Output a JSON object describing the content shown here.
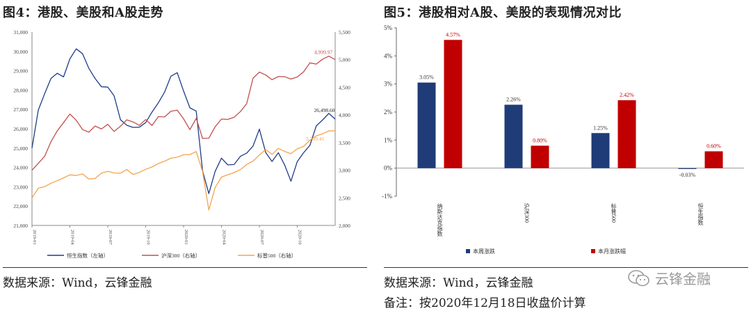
{
  "left": {
    "title": "图4：港股、美股和A股走势",
    "source": "数据来源：Wind，云锋金融",
    "chart_data": {
      "type": "line",
      "title": "港股、美股和A股走势",
      "x_ticks": [
        "2019-01",
        "2019-04",
        "2019-07",
        "2019-10",
        "2020-01",
        "2020-04",
        "2020-07",
        "2020-10"
      ],
      "x_range": [
        0,
        24
      ],
      "y_left": {
        "range": [
          21000,
          31000
        ],
        "ticks": [
          "21,000",
          "22,000",
          "23,000",
          "24,000",
          "25,000",
          "26,000",
          "27,000",
          "28,000",
          "29,000",
          "30,000",
          "31,000"
        ]
      },
      "y_right": {
        "range": [
          2000,
          5500
        ],
        "ticks": [
          "2,000",
          "2,500",
          "3,000",
          "3,500",
          "4,000",
          "4,500",
          "5,000",
          "5,500"
        ]
      },
      "series": [
        {
          "name": "恒生指数（左轴）",
          "axis": "left",
          "color": "#1f3c88",
          "t": [
            0,
            0.5,
            1,
            1.5,
            2,
            2.5,
            3,
            3.5,
            4,
            4.5,
            5,
            5.5,
            6,
            6.5,
            7,
            7.5,
            8,
            8.5,
            9,
            9.5,
            10,
            10.5,
            11,
            11.5,
            12,
            12.5,
            13,
            13.5,
            14,
            14.5,
            15,
            15.5,
            16,
            16.5,
            17,
            17.5,
            18,
            18.5,
            19,
            19.5,
            20,
            20.5,
            21,
            21.5,
            22,
            22.5,
            23,
            23.5,
            24
          ],
          "v": [
            25000,
            26800,
            27800,
            28500,
            28800,
            28600,
            29500,
            30100,
            30000,
            29200,
            28600,
            28200,
            28300,
            27700,
            26500,
            26100,
            25900,
            26000,
            26200,
            26800,
            27200,
            27800,
            28600,
            29000,
            28100,
            27200,
            27000,
            24000,
            22800,
            23900,
            24300,
            24000,
            24100,
            24500,
            24700,
            25000,
            25800,
            24600,
            24400,
            24800,
            24200,
            23300,
            24400,
            24900,
            25200,
            26000,
            26400,
            26700,
            26500
          ]
        },
        {
          "name": "沪深300（右轴）",
          "axis": "right",
          "color": "#c0504d",
          "t": [
            0,
            0.5,
            1,
            1.5,
            2,
            2.5,
            3,
            3.5,
            4,
            4.5,
            5,
            5.5,
            6,
            6.5,
            7,
            7.5,
            8,
            8.5,
            9,
            9.5,
            10,
            10.5,
            11,
            11.5,
            12,
            12.5,
            13,
            13.5,
            14,
            14.5,
            15,
            15.5,
            16,
            16.5,
            17,
            17.5,
            18,
            18.5,
            19,
            19.5,
            20,
            20.5,
            21,
            21.5,
            22,
            22.5,
            23,
            23.5,
            24
          ],
          "v": [
            3000,
            3100,
            3250,
            3500,
            3700,
            3850,
            4000,
            3900,
            3750,
            3700,
            3800,
            3750,
            3850,
            3700,
            3800,
            3900,
            3850,
            3800,
            3900,
            3800,
            3950,
            3950,
            4050,
            4100,
            3950,
            3750,
            3950,
            3600,
            3600,
            3800,
            3900,
            3900,
            3950,
            4050,
            4200,
            4650,
            4750,
            4700,
            4650,
            4700,
            4700,
            4650,
            4700,
            4800,
            4950,
            4900,
            5000,
            5050,
            4999.97
          ]
        },
        {
          "name": "标普500（右轴）",
          "axis": "right",
          "color": "#f5a34b",
          "t": [
            0,
            0.5,
            1,
            1.5,
            2,
            2.5,
            3,
            3.5,
            4,
            4.5,
            5,
            5.5,
            6,
            6.5,
            7,
            7.5,
            8,
            8.5,
            9,
            9.5,
            10,
            10.5,
            11,
            11.5,
            12,
            12.5,
            13,
            13.5,
            14,
            14.5,
            15,
            15.5,
            16,
            16.5,
            17,
            17.5,
            18,
            18.5,
            19,
            19.5,
            20,
            20.5,
            21,
            21.5,
            22,
            22.5,
            23,
            23.5,
            24
          ],
          "v": [
            2500,
            2650,
            2700,
            2750,
            2800,
            2850,
            2900,
            2900,
            2950,
            2850,
            2850,
            2950,
            3000,
            2950,
            2950,
            3000,
            2900,
            2950,
            3000,
            3050,
            3100,
            3150,
            3200,
            3250,
            3300,
            3300,
            3350,
            3000,
            2300,
            2700,
            2850,
            2900,
            2950,
            3000,
            3100,
            3150,
            3250,
            3350,
            3300,
            3400,
            3350,
            3300,
            3400,
            3450,
            3550,
            3600,
            3650,
            3700,
            3709.41
          ]
        }
      ],
      "annotations": [
        {
          "label": "4,999.97",
          "series": "沪深300（右轴）",
          "t": 24,
          "v": 4999.97,
          "color": "#c0504d"
        },
        {
          "label": "26,498.60",
          "series": "恒生指数（左轴）",
          "t": 23.2,
          "v": 26498.6,
          "color": "#222222"
        },
        {
          "label": "3,709.41",
          "series": "标普500（右轴）",
          "t": 24,
          "v": 3709.41,
          "color": "#f5a34b"
        }
      ],
      "legend": [
        "恒生指数（左轴）",
        "沪深300（右轴）",
        "标普500（右轴）"
      ],
      "legend_position": "bottom"
    }
  },
  "right": {
    "title": "图5：港股相对A股、美股的表现情况对比",
    "source": "数据来源：Wind，云锋金融",
    "note": "备注：按2020年12月18日收盘价计算",
    "chart_data": {
      "type": "bar",
      "title": "港股相对A股、美股的表现情况对比",
      "categories": [
        "纳斯达克指数",
        "沪深300",
        "标普500",
        "恒生指数"
      ],
      "series": [
        {
          "name": "本周涨跌",
          "color": "#1f3c78",
          "values": [
            3.05,
            2.26,
            1.25,
            -0.03
          ],
          "labels": [
            "3.05%",
            "2.26%",
            "1.25%",
            "-0.03%"
          ]
        },
        {
          "name": "本月涨跌幅",
          "color": "#c00000",
          "values": [
            4.57,
            0.8,
            2.42,
            0.6
          ],
          "labels": [
            "4.57%",
            "0.80%",
            "2.42%",
            "0.60%"
          ]
        }
      ],
      "ylim": [
        -1,
        5
      ],
      "y_ticks": [
        "-1%",
        "0%",
        "1%",
        "2%",
        "3%",
        "4%",
        "5%"
      ],
      "legend_position": "bottom"
    }
  },
  "watermark": {
    "text": "云锋金融",
    "icon": "wechat-icon"
  }
}
